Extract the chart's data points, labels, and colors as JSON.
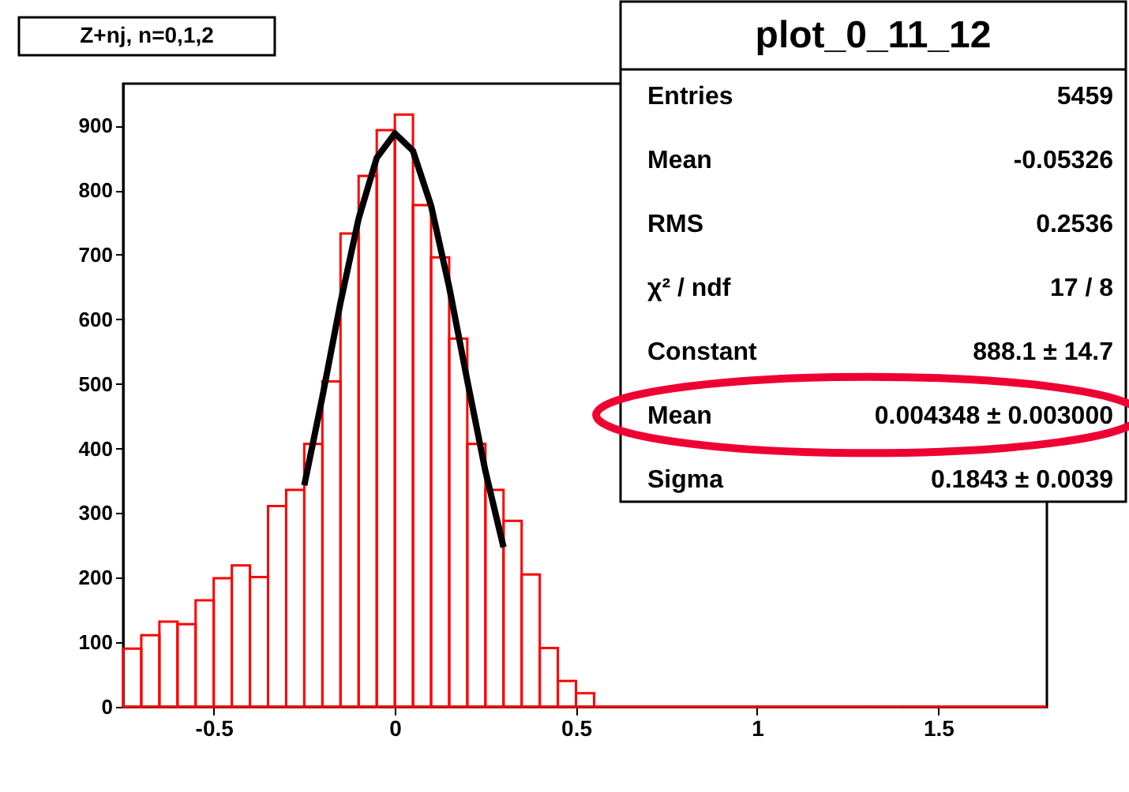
{
  "chart_data": {
    "type": "histogram",
    "title": "Z+nj, n=0,1,2",
    "bins": [
      -0.75,
      -0.7,
      -0.65,
      -0.6,
      -0.55,
      -0.5,
      -0.45,
      -0.4,
      -0.35,
      -0.3,
      -0.25,
      -0.2,
      -0.15,
      -0.1,
      -0.05,
      0,
      0.05,
      0.1,
      0.15,
      0.2,
      0.25,
      0.3,
      0.35,
      0.4,
      0.45,
      0.5,
      0.55,
      0.6,
      0.65,
      0.7,
      0.75,
      0.8,
      0.85,
      0.9,
      0.95,
      1,
      1.05,
      1.1,
      1.15,
      1.2,
      1.25,
      1.3,
      1.35,
      1.4,
      1.45,
      1.5,
      1.55,
      1.6,
      1.65,
      1.7,
      1.75,
      1.8
    ],
    "values": [
      90,
      111,
      132,
      128,
      165,
      199,
      219,
      201,
      311,
      336,
      407,
      504,
      733,
      822,
      893,
      917,
      777,
      696,
      570,
      407,
      336,
      288,
      205,
      91,
      40,
      21,
      0,
      0,
      0,
      0,
      0,
      0,
      0,
      0,
      0,
      0,
      0,
      0,
      0,
      0,
      0,
      0,
      0,
      0,
      0,
      0,
      0,
      0,
      0,
      0,
      0
    ],
    "color": "#ff0000",
    "series": [
      {
        "type": "line",
        "color": "#000000",
        "x": [
          -0.25,
          -0.2,
          -0.15,
          -0.1,
          -0.05,
          0,
          0.05,
          0.1,
          0.15,
          0.2,
          0.25,
          0.3
        ],
        "values": [
          343,
          480,
          626,
          756,
          850,
          888,
          861,
          776,
          650,
          505,
          365,
          247
        ]
      }
    ],
    "xlim": [
      -0.75,
      1.8
    ],
    "xticks": [
      -0.5,
      0,
      0.5,
      1,
      1.5
    ],
    "ylim": [
      0,
      965
    ],
    "yticks": [
      0,
      100,
      200,
      300,
      400,
      500,
      600,
      700,
      800,
      900
    ],
    "grid": false,
    "annotations": [
      "plot_0_11_12",
      "Entries",
      "5459",
      "Mean",
      "-0.05326",
      "RMS",
      "0.2536",
      "χ² / ndf",
      "17 / 8",
      "Constant",
      "888.1 ± 14.7",
      "Mean",
      "0.004348 ± 0.003000",
      "Sigma",
      "0.1843 ± 0.0039"
    ]
  }
}
